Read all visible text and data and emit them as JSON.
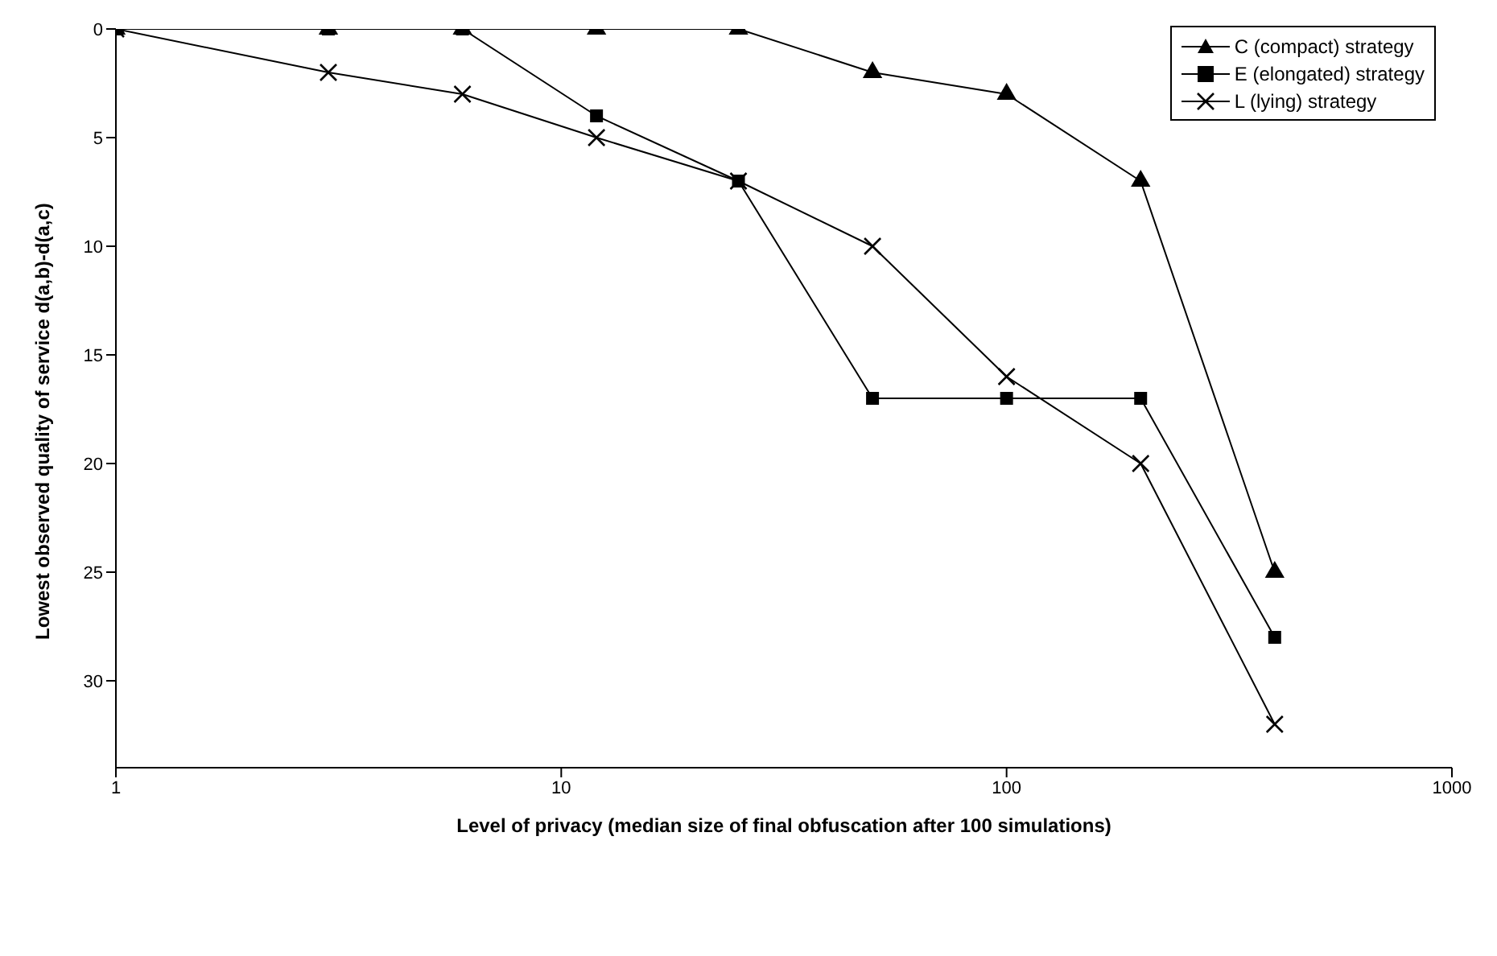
{
  "chart_data": {
    "type": "line",
    "xlabel": "Level of privacy  (median size of final obfuscation after 100 simulations)",
    "ylabel": "Lowest observed quality of service d(a,b)-d(a,c)",
    "x": [
      1,
      3,
      6,
      12,
      25,
      50,
      100,
      200,
      400
    ],
    "log": "x",
    "xlim": [
      1,
      1000
    ],
    "xticks": [
      1,
      10,
      100,
      1000
    ],
    "ylim": [
      34,
      0
    ],
    "yticks": [
      0,
      5,
      10,
      15,
      20,
      25,
      30
    ],
    "grid": false,
    "legend": "top right",
    "series": [
      {
        "name": "C (compact) strategy",
        "color": "#000000",
        "marker": "triangle",
        "values": [
          0,
          0,
          0,
          0,
          0,
          2,
          3,
          7,
          25
        ]
      },
      {
        "name": "E (elongated) strategy",
        "color": "#000000",
        "marker": "square",
        "values": [
          0,
          0,
          0,
          4,
          7,
          17,
          17,
          17,
          28
        ]
      },
      {
        "name": "L (lying) strategy",
        "color": "#000000",
        "marker": "cross",
        "values": [
          0,
          2,
          3,
          5,
          7,
          10,
          16,
          20,
          32
        ]
      }
    ]
  }
}
